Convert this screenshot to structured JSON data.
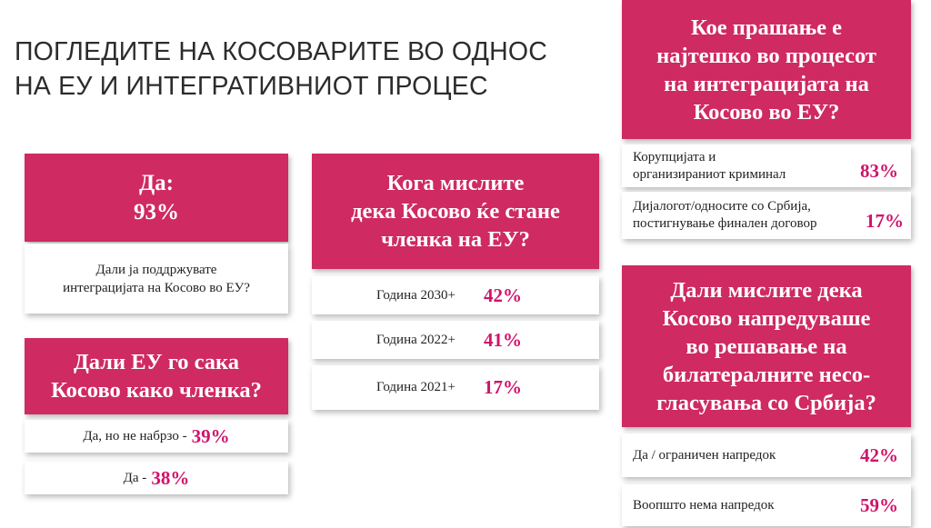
{
  "title": [
    "ПОГЛЕДИТЕ НА КОСОВАРИТЕ ВО ОДНОС",
    "НА ЕУ И ИНТЕГРАТИВНИОТ ПРОЦЕС"
  ],
  "support": {
    "headline_1": "Да:",
    "headline_2": "93%",
    "question_1": "Дали ја поддржувате",
    "question_2": "интеграцијата на Косово во ЕУ?"
  },
  "eu_wants": {
    "question_1": "Дали ЕУ го сака",
    "question_2": "Косово како членка?",
    "answers": [
      {
        "label": "Да, но не набрзо -",
        "pct": "39%"
      },
      {
        "label": "Да -",
        "pct": "38%"
      }
    ]
  },
  "when_member": {
    "question_1": "Кога мислите",
    "question_2": "дека Косово ќе стане",
    "question_3": "членка на ЕУ?",
    "answers": [
      {
        "label": "Година 2030+",
        "pct": "42%"
      },
      {
        "label": "Година 2022+",
        "pct": "41%"
      },
      {
        "label": "Година 2021+",
        "pct": "17%"
      }
    ]
  },
  "hardest": {
    "question_1": "Кое прашање е",
    "question_2": "најтешко во процесот",
    "question_3": "на интеграцијата на",
    "question_4": "Косово во ЕУ?",
    "answers": [
      {
        "label_1": "Корупцијата и",
        "label_2": "организираниот криминал",
        "pct": "83%"
      },
      {
        "label_1": "Дијалогот/односите со Србија,",
        "label_2": "постигнување финален договор",
        "pct": "17%"
      }
    ]
  },
  "progress": {
    "question_1": "Дали мислите дека",
    "question_2": "Косово напредуваше",
    "question_3": "во решавање на",
    "question_4": "билатералните несо-",
    "question_5": "гласувања со Србија?",
    "answers": [
      {
        "label": "Да / ограничен напредок",
        "pct": "42%"
      },
      {
        "label": "Воопшто нема напредок",
        "pct": "59%"
      }
    ]
  },
  "colors": {
    "accent": "#cf2a62",
    "percent": "#d0136b",
    "title": "#2c2c2c"
  }
}
